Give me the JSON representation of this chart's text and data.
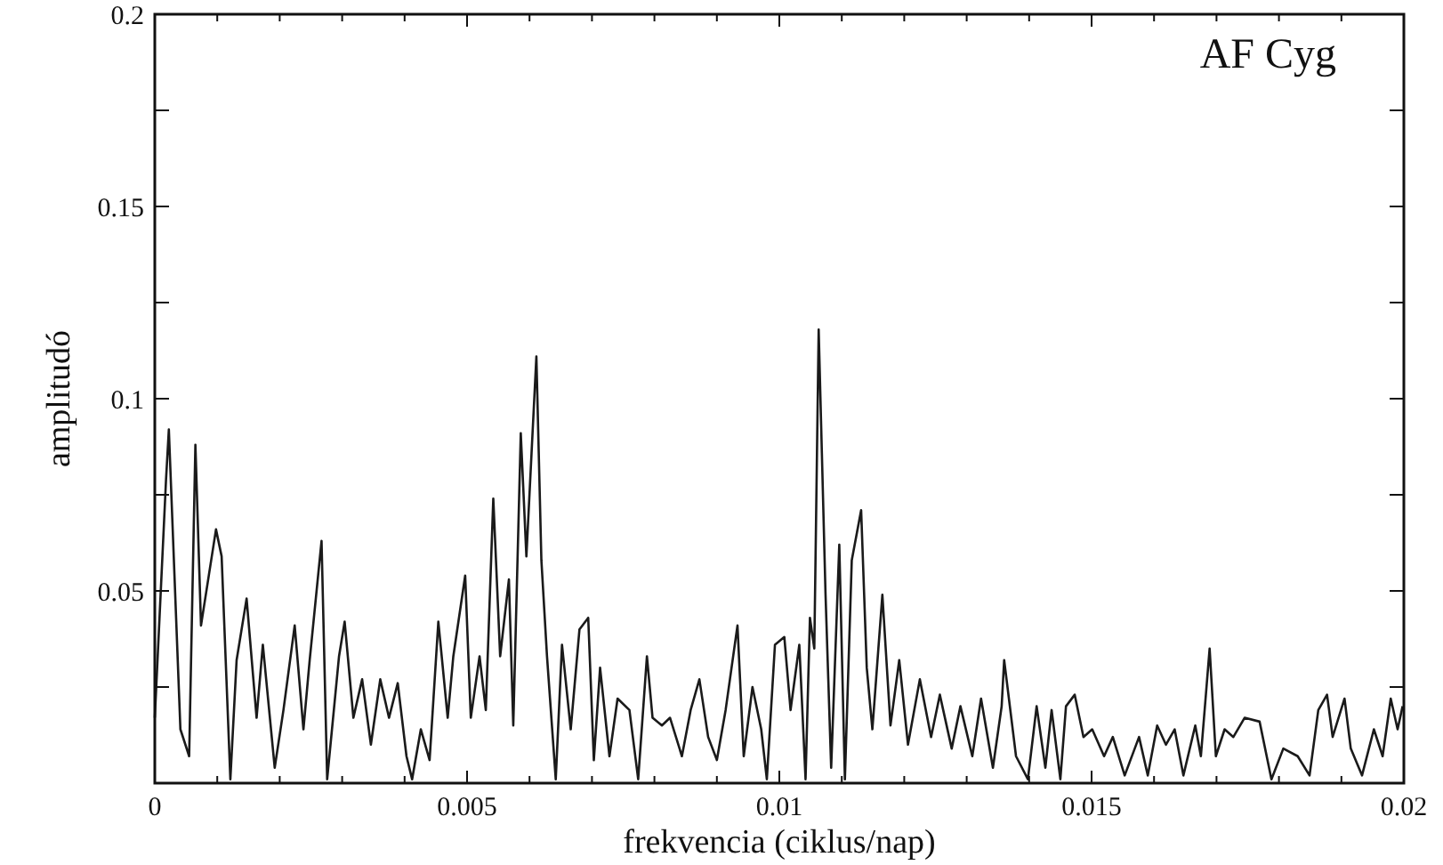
{
  "chart_data": {
    "type": "line",
    "title": "AF Cyg",
    "xlabel": "frekvencia (ciklus/nap)",
    "ylabel": "amplitudó",
    "xlim": [
      0,
      0.02
    ],
    "ylim": [
      0,
      0.2
    ],
    "xticks": [
      0,
      {
        "value": 0.001,
        "label": null
      },
      {
        "value": 0.002,
        "label": null
      },
      {
        "value": 0.003,
        "label": null
      },
      {
        "value": 0.004,
        "label": null
      },
      0.005,
      {
        "value": 0.006,
        "label": null
      },
      {
        "value": 0.007,
        "label": null
      },
      {
        "value": 0.008,
        "label": null
      },
      {
        "value": 0.009,
        "label": null
      },
      0.01,
      {
        "value": 0.011,
        "label": null
      },
      {
        "value": 0.012,
        "label": null
      },
      {
        "value": 0.013,
        "label": null
      },
      {
        "value": 0.014,
        "label": null
      },
      0.015,
      {
        "value": 0.016,
        "label": null
      },
      {
        "value": 0.017,
        "label": null
      },
      {
        "value": 0.018,
        "label": null
      },
      {
        "value": 0.019,
        "label": null
      },
      0.02
    ],
    "yticks": [
      {
        "value": 0,
        "label": null
      },
      {
        "value": 0.025,
        "label": null
      },
      0.05,
      {
        "value": 0.075,
        "label": null
      },
      0.1,
      {
        "value": 0.125,
        "label": null
      },
      0.15,
      {
        "value": 0.175,
        "label": null
      },
      0.2
    ],
    "grid": false,
    "marker": "none",
    "line_style": "solid",
    "series": [
      {
        "color": "#1a1a1a",
        "x": [
          0,
          0.00018,
          0.000225,
          0.00041,
          0.00055,
          0.00065,
          0.00074,
          0.00098,
          0.00107,
          0.00121,
          0.00131,
          0.00147,
          0.00163,
          0.00173,
          0.00192,
          0.00206,
          0.00224,
          0.00238,
          0.00248,
          0.00267,
          0.00276,
          0.00295,
          0.00304,
          0.00318,
          0.00332,
          0.00346,
          0.00361,
          0.00375,
          0.00389,
          0.00403,
          0.00412,
          0.00426,
          0.0044,
          0.00454,
          0.00469,
          0.00478,
          0.00497,
          0.00506,
          0.0052,
          0.0053,
          0.00542,
          0.00553,
          0.00567,
          0.00574,
          0.00586,
          0.00595,
          0.00611,
          0.00619,
          0.00628,
          0.00642,
          0.00652,
          0.00666,
          0.0068,
          0.00694,
          0.00703,
          0.00713,
          0.00728,
          0.00741,
          0.0076,
          0.00774,
          0.00788,
          0.00797,
          0.00812,
          0.00825,
          0.00844,
          0.00858,
          0.00872,
          0.00886,
          0.009,
          0.00914,
          0.00933,
          0.00943,
          0.00957,
          0.00971,
          0.0098,
          0.00993,
          0.01008,
          0.01018,
          0.01032,
          0.01042,
          0.01049,
          0.01056,
          0.01063,
          0.01074,
          0.01083,
          0.01096,
          0.01105,
          0.01116,
          0.01131,
          0.0114,
          0.01149,
          0.01165,
          0.01178,
          0.01192,
          0.01206,
          0.01225,
          0.01243,
          0.01257,
          0.01276,
          0.0129,
          0.01309,
          0.01323,
          0.01342,
          0.01356,
          0.0136,
          0.01379,
          0.01398,
          0.01412,
          0.01426,
          0.01436,
          0.0145,
          0.01459,
          0.01473,
          0.01487,
          0.01501,
          0.0152,
          0.01534,
          0.01553,
          0.01576,
          0.0159,
          0.01605,
          0.01619,
          0.01633,
          0.01647,
          0.01666,
          0.01675,
          0.01689,
          0.01699,
          0.01713,
          0.01727,
          0.01745,
          0.01769,
          0.01788,
          0.01807,
          0.0183,
          0.01849,
          0.01863,
          0.01877,
          0.01886,
          0.01905,
          0.01915,
          0.01933,
          0.01952,
          0.01966,
          0.01979,
          0.0199,
          0.01998
        ],
        "values": [
          0.017,
          0.079,
          0.092,
          0.014,
          0.007,
          0.088,
          0.041,
          0.066,
          0.059,
          0.001,
          0.032,
          0.048,
          0.017,
          0.036,
          0.004,
          0.019,
          0.041,
          0.014,
          0.032,
          0.063,
          0.001,
          0.033,
          0.042,
          0.017,
          0.027,
          0.01,
          0.027,
          0.017,
          0.026,
          0.007,
          0.001,
          0.014,
          0.006,
          0.042,
          0.017,
          0.033,
          0.054,
          0.017,
          0.033,
          0.019,
          0.074,
          0.033,
          0.053,
          0.015,
          0.091,
          0.059,
          0.111,
          0.058,
          0.033,
          0.001,
          0.036,
          0.014,
          0.04,
          0.043,
          0.006,
          0.03,
          0.007,
          0.022,
          0.019,
          0.001,
          0.033,
          0.017,
          0.015,
          0.017,
          0.007,
          0.019,
          0.027,
          0.012,
          0.006,
          0.019,
          0.041,
          0.007,
          0.025,
          0.014,
          0.001,
          0.036,
          0.038,
          0.019,
          0.036,
          0.001,
          0.043,
          0.035,
          0.118,
          0.049,
          0.004,
          0.062,
          0.001,
          0.058,
          0.071,
          0.03,
          0.014,
          0.049,
          0.015,
          0.032,
          0.01,
          0.027,
          0.012,
          0.023,
          0.009,
          0.02,
          0.007,
          0.022,
          0.004,
          0.02,
          0.032,
          0.007,
          0.001,
          0.02,
          0.004,
          0.019,
          0.001,
          0.02,
          0.023,
          0.012,
          0.014,
          0.007,
          0.012,
          0.002,
          0.012,
          0.002,
          0.015,
          0.01,
          0.014,
          0.002,
          0.015,
          0.007,
          0.035,
          0.007,
          0.014,
          0.012,
          0.017,
          0.016,
          0.001,
          0.009,
          0.007,
          0.002,
          0.019,
          0.023,
          0.012,
          0.022,
          0.009,
          0.002,
          0.014,
          0.007,
          0.022,
          0.014,
          0.02
        ]
      }
    ]
  }
}
